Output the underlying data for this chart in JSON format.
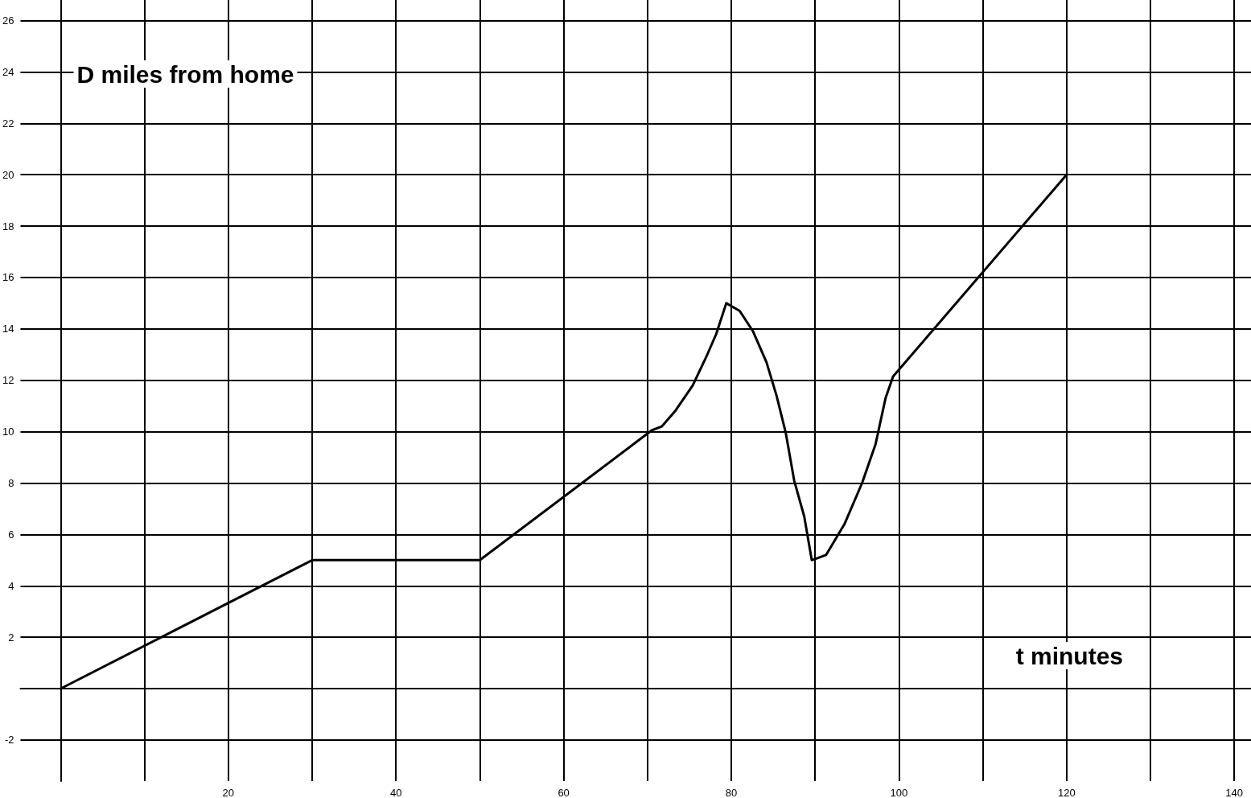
{
  "chart_data": {
    "type": "line",
    "xlabel": "t minutes",
    "ylabel": "D miles from home",
    "series": [
      {
        "color": "#000000",
        "x": [
          0,
          30,
          50,
          70.5,
          71.7,
          73.3,
          75.4,
          77,
          78.2,
          79.4,
          81,
          82.6,
          84.2,
          85.4,
          86.5,
          87.5,
          88.7,
          89.6,
          91.3,
          93.5,
          95.6,
          97.2,
          98.4,
          99.3,
          120
        ],
        "values": [
          0,
          5,
          5,
          10.05,
          10.2,
          10.8,
          11.8,
          12.9,
          13.8,
          15,
          14.7,
          13.9,
          12.7,
          11.4,
          9.95,
          8.1,
          6.7,
          5,
          5.2,
          6.4,
          8,
          9.5,
          11.3,
          12.15,
          20
        ]
      }
    ],
    "xlim": [
      -4.8,
      142
    ],
    "ylim": [
      -3.6,
      26.8
    ],
    "xticks": [
      {
        "value": 0,
        "label": null
      },
      {
        "value": 10,
        "label": null
      },
      20,
      {
        "value": 30,
        "label": null
      },
      40,
      {
        "value": 50,
        "label": null
      },
      60,
      {
        "value": 70,
        "label": null
      },
      80,
      {
        "value": 90,
        "label": null
      },
      100,
      {
        "value": 110,
        "label": null
      },
      120,
      {
        "value": 130,
        "label": null
      },
      140
    ],
    "yticks": [
      -2,
      {
        "value": 0,
        "label": null
      },
      2,
      4,
      6,
      8,
      10,
      12,
      14,
      16,
      18,
      20,
      22,
      24,
      26
    ],
    "grid": true,
    "marker": "none",
    "line_style": "solid"
  }
}
